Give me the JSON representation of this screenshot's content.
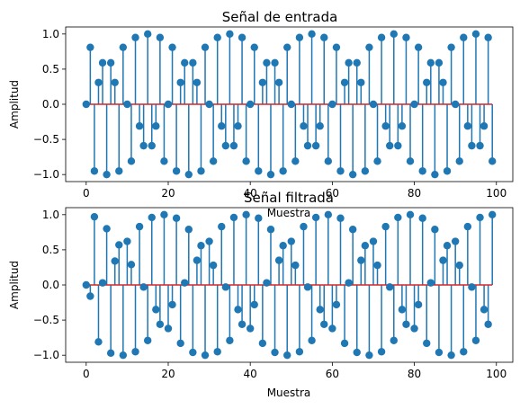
{
  "chart_data": [
    {
      "type": "stem",
      "title": "Señal de entrada",
      "xlabel": "Muestra",
      "ylabel": "Amplitud",
      "xlim": [
        -5,
        104
      ],
      "ylim": [
        -1.1,
        1.1
      ],
      "xticks": [
        0,
        20,
        40,
        60,
        80,
        100
      ],
      "xtick_labels": [
        "0",
        "20",
        "40",
        "60",
        "80",
        "100"
      ],
      "yticks": [
        1.0,
        0.5,
        0.0,
        -0.5,
        -1.0
      ],
      "ytick_labels": [
        "1.0",
        "0.5",
        "0.0",
        "−0.5",
        "−1.0"
      ],
      "baseline": 0,
      "x_start": 0,
      "values": [
        0.0,
        0.81,
        -0.95,
        0.31,
        0.59,
        -1.0,
        0.59,
        0.31,
        -0.95,
        0.81,
        0.0,
        -0.81,
        0.95,
        -0.31,
        -0.59,
        1.0,
        -0.59,
        -0.31,
        0.95,
        -0.81,
        0.0,
        0.81,
        -0.95,
        0.31,
        0.59,
        -1.0,
        0.59,
        0.31,
        -0.95,
        0.81,
        0.0,
        -0.81,
        0.95,
        -0.31,
        -0.59,
        1.0,
        -0.59,
        -0.31,
        0.95,
        -0.81,
        0.0,
        0.81,
        -0.95,
        0.31,
        0.59,
        -1.0,
        0.59,
        0.31,
        -0.95,
        0.81,
        0.0,
        -0.81,
        0.95,
        -0.31,
        -0.59,
        1.0,
        -0.59,
        -0.31,
        0.95,
        -0.81,
        0.0,
        0.81,
        -0.95,
        0.31,
        0.59,
        -1.0,
        0.59,
        0.31,
        -0.95,
        0.81,
        0.0,
        -0.81,
        0.95,
        -0.31,
        -0.59,
        1.0,
        -0.59,
        -0.31,
        0.95,
        -0.81,
        0.0,
        0.81,
        -0.95,
        0.31,
        0.59,
        -1.0,
        0.59,
        0.31,
        -0.95,
        0.81,
        0.0,
        -0.81,
        0.95,
        -0.31,
        -0.59,
        1.0,
        -0.59,
        -0.31,
        0.95,
        -0.81
      ],
      "colors": {
        "stem": "#1f77b4",
        "baseline": "#d62728"
      }
    },
    {
      "type": "stem",
      "title": "Señal filtrada",
      "xlabel": "Muestra",
      "ylabel": "Amplitud",
      "xlim": [
        -5,
        104
      ],
      "ylim": [
        -1.1,
        1.1
      ],
      "xticks": [
        0,
        20,
        40,
        60,
        80,
        100
      ],
      "xtick_labels": [
        "0",
        "20",
        "40",
        "60",
        "80",
        "100"
      ],
      "yticks": [
        1.0,
        0.5,
        0.0,
        -0.5,
        -1.0
      ],
      "ytick_labels": [
        "1.0",
        "0.5",
        "0.0",
        "−0.5",
        "−1.0"
      ],
      "baseline": 0,
      "x_start": 0,
      "values": [
        0.0,
        -0.16,
        0.97,
        -0.81,
        0.03,
        0.8,
        -0.97,
        0.34,
        0.57,
        -1.0,
        0.62,
        0.29,
        -0.95,
        0.83,
        -0.03,
        -0.79,
        0.96,
        -0.35,
        -0.56,
        1.0,
        -0.62,
        -0.28,
        0.95,
        -0.83,
        0.03,
        0.79,
        -0.96,
        0.35,
        0.56,
        -1.0,
        0.62,
        0.28,
        -0.95,
        0.83,
        -0.03,
        -0.79,
        0.96,
        -0.35,
        -0.56,
        1.0,
        -0.62,
        -0.28,
        0.95,
        -0.83,
        0.03,
        0.79,
        -0.96,
        0.35,
        0.56,
        -1.0,
        0.62,
        0.28,
        -0.95,
        0.83,
        -0.03,
        -0.79,
        0.96,
        -0.35,
        -0.56,
        1.0,
        -0.62,
        -0.28,
        0.95,
        -0.83,
        0.03,
        0.79,
        -0.96,
        0.35,
        0.56,
        -1.0,
        0.62,
        0.28,
        -0.95,
        0.83,
        -0.03,
        -0.79,
        0.96,
        -0.35,
        -0.56,
        1.0,
        -0.62,
        -0.28,
        0.95,
        -0.83,
        0.03,
        0.79,
        -0.96,
        0.35,
        0.56,
        -1.0,
        0.62,
        0.28,
        -0.95,
        0.83,
        -0.03,
        -0.79,
        0.96,
        -0.35,
        -0.56,
        1.0
      ],
      "colors": {
        "stem": "#1f77b4",
        "baseline": "#d62728"
      }
    }
  ]
}
